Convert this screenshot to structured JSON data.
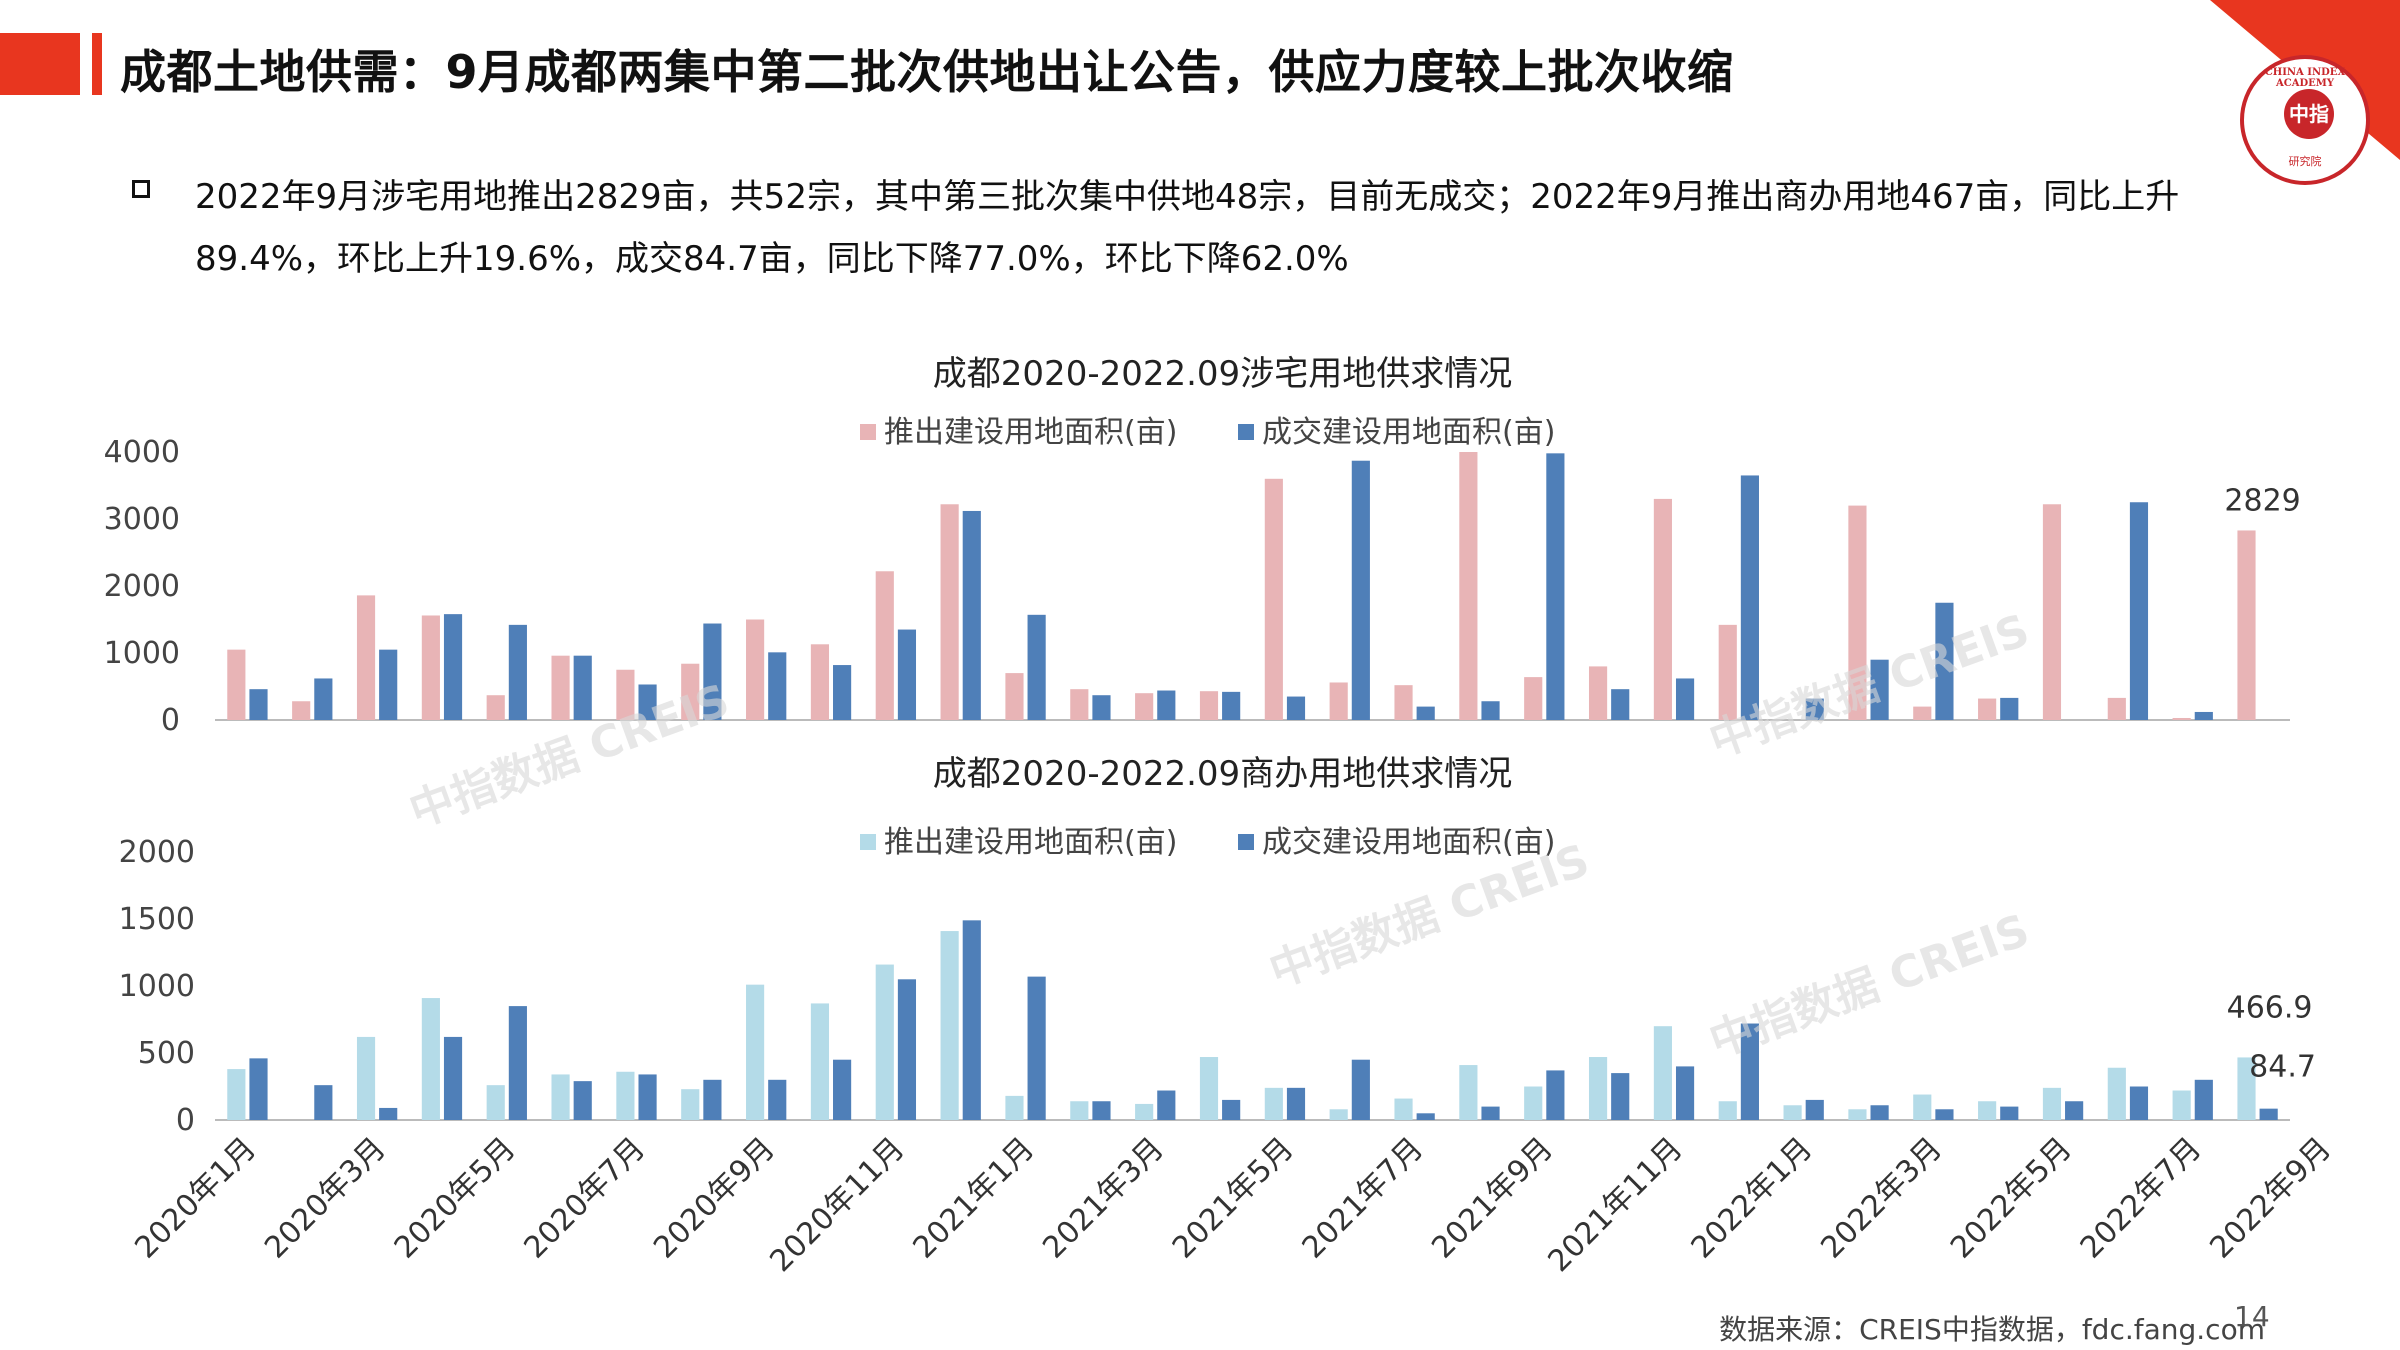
{
  "header": {
    "title": "成都土地供需：9月成都两集中第二批次供地出让公告，供应力度较上批次收缩"
  },
  "logo": {
    "ring_text": "CHINA INDEX ACADEMY",
    "center_text": "中指",
    "bottom_text": "研究院"
  },
  "bullet": {
    "text": "2022年9月涉宅用地推出2829亩，共52宗，其中第三批次集中供地48宗，目前无成交；2022年9月推出商办用地467亩，同比上升89.4%，环比上升19.6%，成交84.7亩，同比下降77.0%，环比下降62.0%"
  },
  "colors": {
    "accent_red": "#e8361f",
    "res_supply": "#e8b4b6",
    "res_deal": "#4f7fb8",
    "com_supply": "#b4dbe8",
    "com_deal": "#4f7fb8"
  },
  "x_tick_labels": [
    "2020年1月",
    "2020年3月",
    "2020年5月",
    "2020年7月",
    "2020年9月",
    "2020年11月",
    "2021年1月",
    "2021年3月",
    "2021年5月",
    "2021年7月",
    "2021年9月",
    "2021年11月",
    "2022年1月",
    "2022年3月",
    "2022年5月",
    "2022年7月",
    "2022年9月"
  ],
  "chart_data": [
    {
      "type": "bar",
      "title": "成都2020-2022.09涉宅用地供求情况",
      "ylim": [
        0,
        4000
      ],
      "yticks": [
        0,
        1000,
        2000,
        3000,
        4000
      ],
      "grid": false,
      "legend_position": "top",
      "series": [
        {
          "name": "推出建设用地面积(亩)",
          "values": [
            1050,
            280,
            1860,
            1560,
            370,
            960,
            750,
            840,
            1500,
            1130,
            2220,
            3220,
            700,
            460,
            400,
            430,
            3600,
            560,
            520,
            4000,
            640,
            800,
            3300,
            1420,
            0,
            3200,
            200,
            320,
            3220,
            330,
            30,
            2829
          ]
        },
        {
          "name": "成交建设用地面积(亩)",
          "values": [
            460,
            620,
            1050,
            1580,
            1420,
            960,
            530,
            1440,
            1010,
            820,
            1350,
            3120,
            1570,
            370,
            440,
            420,
            350,
            3870,
            200,
            280,
            3980,
            460,
            620,
            3650,
            320,
            900,
            1750,
            330,
            0,
            3250,
            120,
            0
          ]
        }
      ],
      "annotations": [
        "2829"
      ]
    },
    {
      "type": "bar",
      "title": "成都2020-2022.09商办用地供求情况",
      "ylim": [
        0,
        2000
      ],
      "yticks": [
        0,
        500,
        1000,
        1500,
        2000
      ],
      "grid": false,
      "legend_position": "top",
      "series": [
        {
          "name": "推出建设用地面积(亩)",
          "values": [
            380,
            0,
            620,
            910,
            260,
            340,
            360,
            230,
            1010,
            870,
            1160,
            1410,
            180,
            140,
            120,
            470,
            240,
            80,
            160,
            410,
            250,
            470,
            700,
            140,
            110,
            80,
            190,
            140,
            240,
            390,
            220,
            466.9
          ]
        },
        {
          "name": "成交建设用地面积(亩)",
          "values": [
            460,
            260,
            90,
            620,
            850,
            290,
            340,
            300,
            300,
            450,
            1050,
            1490,
            1070,
            140,
            220,
            150,
            240,
            450,
            50,
            100,
            370,
            350,
            400,
            720,
            150,
            110,
            80,
            100,
            140,
            250,
            300,
            84.7
          ]
        }
      ],
      "annotations": [
        "466.9",
        "84.7"
      ]
    }
  ],
  "source": "数据来源：CREIS中指数据，fdc.fang.com",
  "page_number": "14",
  "watermark": [
    "中指数据 CREIS"
  ]
}
